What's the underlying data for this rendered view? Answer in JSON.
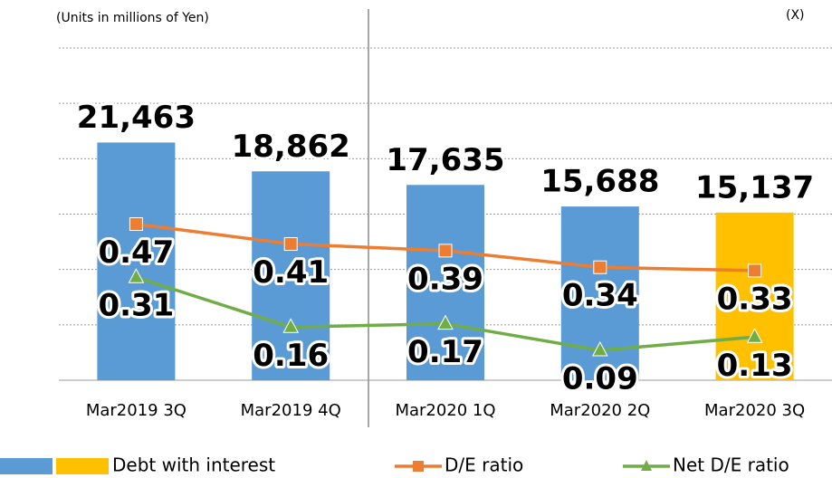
{
  "chart_data": {
    "type": "bar",
    "subtitle": "(Units in millions of Yen)",
    "y2_label": "(X)",
    "categories": [
      "Mar2019 3Q",
      "Mar2019 4Q",
      "Mar2020 1Q",
      "Mar2020 2Q",
      "Mar2020 3Q"
    ],
    "series": [
      {
        "name": "Debt with interest",
        "type": "bar",
        "colors": [
          "#5b9bd5",
          "#5b9bd5",
          "#5b9bd5",
          "#5b9bd5",
          "#ffc000"
        ],
        "values": [
          21463,
          18862,
          17635,
          15688,
          15137
        ],
        "value_labels": [
          "21,463",
          "18,862",
          "17,635",
          "15,688",
          "15,137"
        ]
      },
      {
        "name": "D/E ratio",
        "type": "line",
        "marker": "square",
        "color": "#ed7d31",
        "axis": "y2",
        "values": [
          0.47,
          0.41,
          0.39,
          0.34,
          0.33
        ]
      },
      {
        "name": "Net D/E ratio",
        "type": "line",
        "marker": "triangle",
        "color": "#70ad47",
        "axis": "y2",
        "values": [
          0.31,
          0.16,
          0.17,
          0.09,
          0.13
        ]
      }
    ],
    "ylim": [
      0,
      30000
    ],
    "yticks": [
      0,
      5000,
      10000,
      15000,
      20000,
      25000,
      30000
    ],
    "y2lim": [
      0,
      1
    ],
    "grid": true
  }
}
